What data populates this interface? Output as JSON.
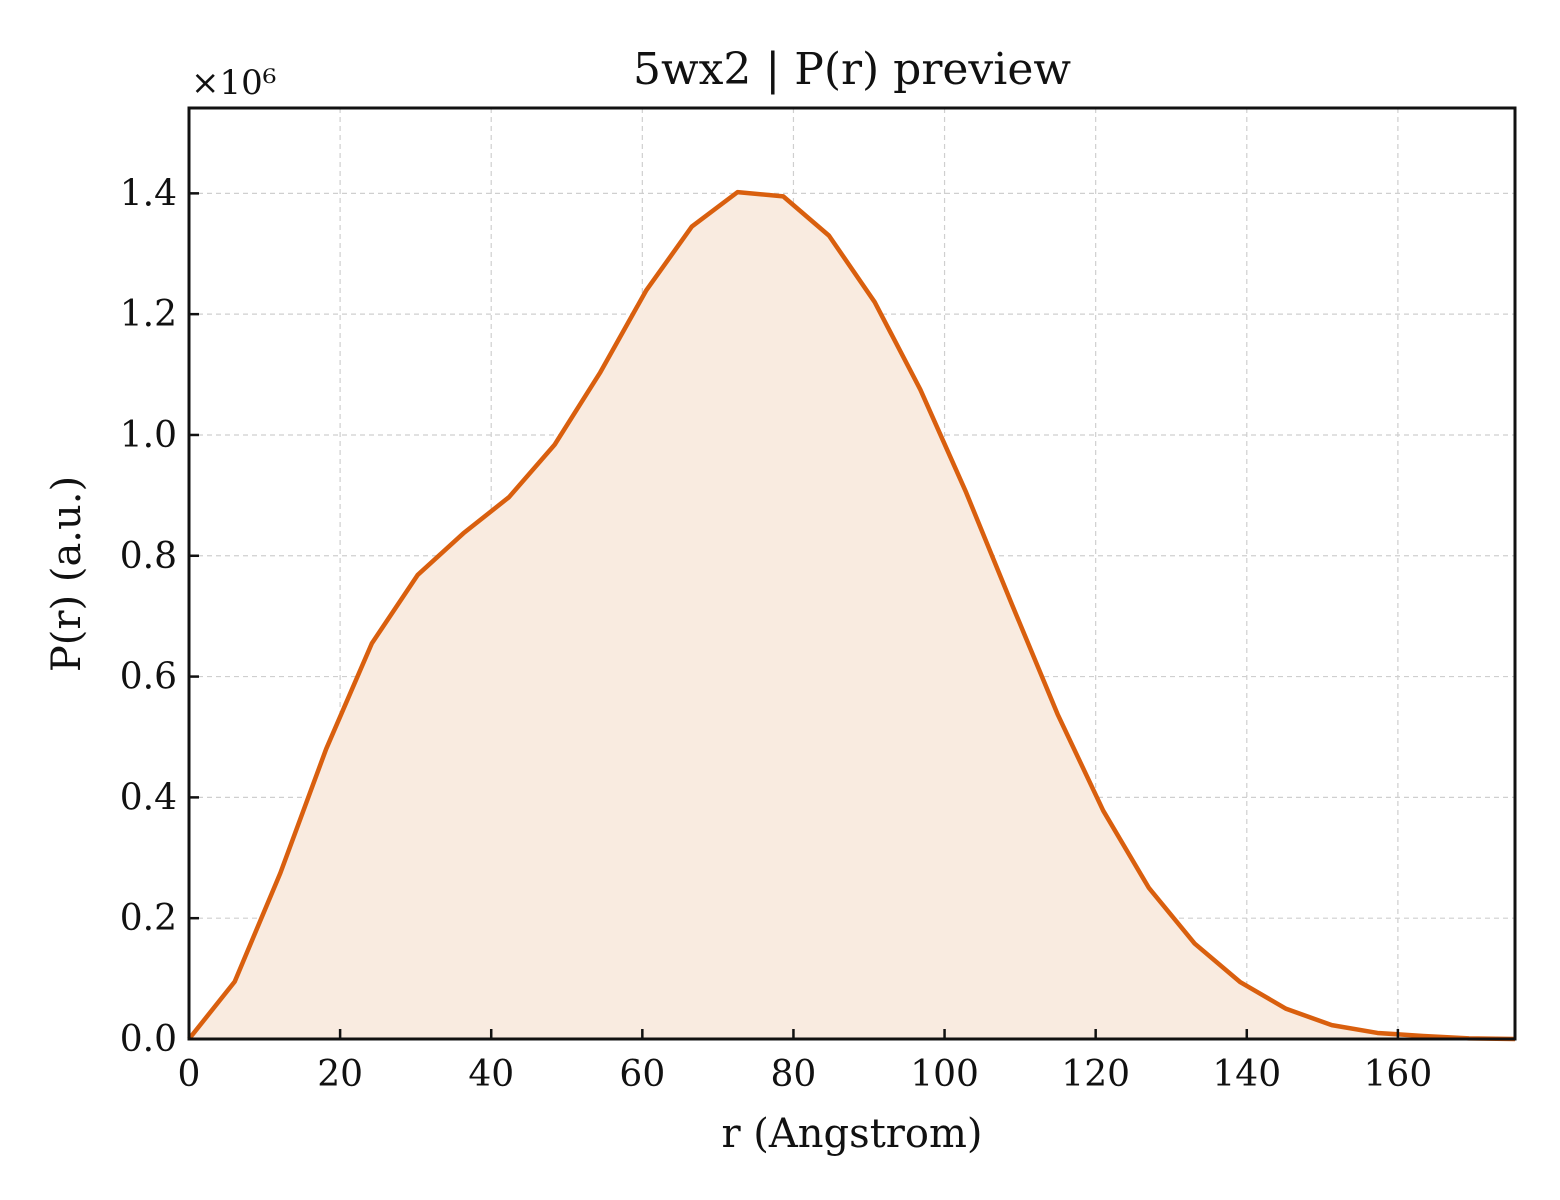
{
  "chart_data": {
    "type": "area",
    "title": "5wx2 | P(r) preview",
    "xlabel": "r (Angstrom)",
    "ylabel": "P(r) (a.u.)",
    "y_multiplier_label": "×10⁶",
    "xlim": [
      0,
      175.5
    ],
    "ylim": [
      0,
      1.5413
    ],
    "xticks": [
      0,
      20,
      40,
      60,
      80,
      100,
      120,
      140,
      160
    ],
    "yticks": [
      "0.0",
      "0.2",
      "0.4",
      "0.6",
      "0.8",
      "1.0",
      "1.2",
      "1.4"
    ],
    "ytick_values": [
      0,
      0.2,
      0.4,
      0.6,
      0.8,
      1.0,
      1.2,
      1.4
    ],
    "grid": true,
    "line_color": "#d95f0e",
    "fill_color": "#f9ebe0",
    "series": [
      {
        "x": [
          0,
          6.05,
          12.1,
          18.15,
          24.2,
          30.25,
          36.3,
          42.35,
          48.4,
          54.45,
          60.5,
          66.55,
          72.6,
          78.65,
          84.7,
          90.75,
          96.8,
          102.85,
          108.9,
          114.95,
          121.0,
          127.05,
          133.1,
          139.15,
          145.2,
          151.25,
          157.3,
          163.35,
          169.4,
          175.5
        ],
        "y": [
          0.0,
          0.095,
          0.275,
          0.48,
          0.655,
          0.768,
          0.837,
          0.897,
          0.984,
          1.104,
          1.239,
          1.345,
          1.402,
          1.395,
          1.33,
          1.22,
          1.075,
          0.905,
          0.72,
          0.538,
          0.378,
          0.25,
          0.158,
          0.094,
          0.05,
          0.023,
          0.01,
          0.005,
          0.001,
          0.0
        ]
      }
    ]
  }
}
